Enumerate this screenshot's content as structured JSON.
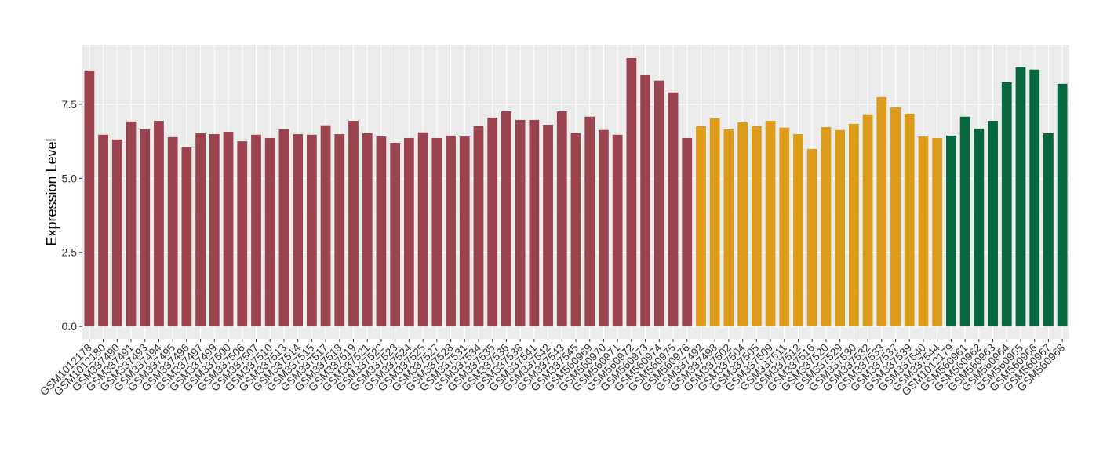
{
  "chart_data": {
    "type": "bar",
    "y_label": "Expression Level",
    "categories": [
      "GSM1012178",
      "GSM1012180",
      "GSM337490",
      "GSM337491",
      "GSM337493",
      "GSM337494",
      "GSM337495",
      "GSM337496",
      "GSM337497",
      "GSM337499",
      "GSM337500",
      "GSM337506",
      "GSM337507",
      "GSM337510",
      "GSM337513",
      "GSM337514",
      "GSM337515",
      "GSM337517",
      "GSM337518",
      "GSM337519",
      "GSM337521",
      "GSM337522",
      "GSM337523",
      "GSM337524",
      "GSM337525",
      "GSM337527",
      "GSM337528",
      "GSM337531",
      "GSM337534",
      "GSM337535",
      "GSM337536",
      "GSM337538",
      "GSM337541",
      "GSM337542",
      "GSM337543",
      "GSM337545",
      "GSM560969",
      "GSM560970",
      "GSM560971",
      "GSM560972",
      "GSM560973",
      "GSM560974",
      "GSM560975",
      "GSM560976",
      "GSM337492",
      "GSM337498",
      "GSM337502",
      "GSM337504",
      "GSM337505",
      "GSM337509",
      "GSM337511",
      "GSM337512",
      "GSM337516",
      "GSM337520",
      "GSM337529",
      "GSM337530",
      "GSM337532",
      "GSM337533",
      "GSM337537",
      "GSM337539",
      "GSM337540",
      "GSM337544",
      "GSM1012179",
      "GSM560961",
      "GSM560962",
      "GSM560963",
      "GSM560964",
      "GSM560965",
      "GSM560966",
      "GSM560967",
      "GSM560968"
    ],
    "values": [
      8.64,
      6.47,
      6.31,
      6.92,
      6.65,
      6.94,
      6.39,
      6.04,
      6.52,
      6.49,
      6.57,
      6.25,
      6.47,
      6.36,
      6.65,
      6.49,
      6.47,
      6.79,
      6.49,
      6.94,
      6.52,
      6.41,
      6.2,
      6.36,
      6.55,
      6.36,
      6.44,
      6.41,
      6.76,
      7.05,
      7.26,
      6.97,
      6.97,
      6.81,
      7.26,
      6.52,
      7.08,
      6.63,
      6.47,
      9.06,
      8.48,
      8.3,
      7.9,
      6.36,
      6.76,
      7.02,
      6.65,
      6.89,
      6.76,
      6.94,
      6.71,
      6.49,
      5.99,
      6.73,
      6.63,
      6.84,
      7.16,
      7.74,
      7.39,
      7.18,
      6.41,
      6.36,
      6.44,
      7.08,
      6.68,
      6.94,
      8.24,
      8.75,
      8.67,
      6.52,
      8.19
    ],
    "colors": [
      "#9b4450",
      "#9b4450",
      "#9b4450",
      "#9b4450",
      "#9b4450",
      "#9b4450",
      "#9b4450",
      "#9b4450",
      "#9b4450",
      "#9b4450",
      "#9b4450",
      "#9b4450",
      "#9b4450",
      "#9b4450",
      "#9b4450",
      "#9b4450",
      "#9b4450",
      "#9b4450",
      "#9b4450",
      "#9b4450",
      "#9b4450",
      "#9b4450",
      "#9b4450",
      "#9b4450",
      "#9b4450",
      "#9b4450",
      "#9b4450",
      "#9b4450",
      "#9b4450",
      "#9b4450",
      "#9b4450",
      "#9b4450",
      "#9b4450",
      "#9b4450",
      "#9b4450",
      "#9b4450",
      "#9b4450",
      "#9b4450",
      "#9b4450",
      "#9b4450",
      "#9b4450",
      "#9b4450",
      "#9b4450",
      "#9b4450",
      "#dc9b18",
      "#dc9b18",
      "#dc9b18",
      "#dc9b18",
      "#dc9b18",
      "#dc9b18",
      "#dc9b18",
      "#dc9b18",
      "#dc9b18",
      "#dc9b18",
      "#dc9b18",
      "#dc9b18",
      "#dc9b18",
      "#dc9b18",
      "#dc9b18",
      "#dc9b18",
      "#dc9b18",
      "#dc9b18",
      "#06673f",
      "#06673f",
      "#06673f",
      "#06673f",
      "#06673f",
      "#06673f",
      "#06673f",
      "#06673f",
      "#06673f"
    ],
    "ylim": [
      -0.42,
      9.51
    ],
    "yticks": [
      {
        "value": 0,
        "label": "0.0"
      },
      2.5,
      {
        "value": 5,
        "label": "5.0"
      },
      7.5
    ],
    "grid": true
  }
}
